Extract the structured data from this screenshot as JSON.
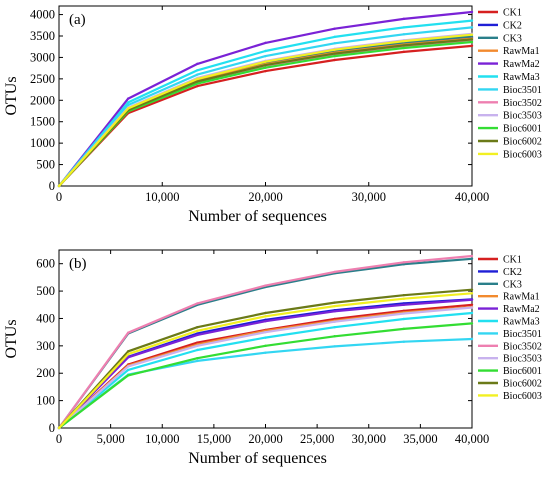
{
  "chart_data": [
    {
      "type": "line",
      "panel_label": "(a)",
      "xlabel": "Number of sequences",
      "ylabel": "OTUs",
      "xlim": [
        0,
        40000
      ],
      "ylim": [
        0,
        4200
      ],
      "xticks": [
        0,
        10000,
        20000,
        30000,
        40000
      ],
      "xtick_labels": [
        "0",
        "10,000",
        "20,000",
        "30,000",
        "40,000"
      ],
      "yticks": [
        0,
        500,
        1000,
        1500,
        2000,
        2500,
        3000,
        3500,
        4000
      ],
      "ytick_labels": [
        "0",
        "500",
        "1000",
        "1500",
        "2000",
        "2500",
        "3000",
        "3500",
        "4000"
      ],
      "x": [
        0,
        6700,
        13400,
        20000,
        26700,
        33400,
        40000
      ],
      "legend_position": "right",
      "series": [
        {
          "name": "CK1",
          "color": "#d62020",
          "values": [
            0,
            1700,
            2330,
            2680,
            2940,
            3130,
            3270
          ]
        },
        {
          "name": "CK2",
          "color": "#1f1fd6",
          "values": [
            0,
            1800,
            2480,
            2860,
            3130,
            3320,
            3460
          ]
        },
        {
          "name": "CK3",
          "color": "#2a7f8a",
          "values": [
            0,
            1820,
            2500,
            2880,
            3150,
            3340,
            3490
          ]
        },
        {
          "name": "RawMa1",
          "color": "#f28a2e",
          "values": [
            0,
            1790,
            2460,
            2840,
            3110,
            3300,
            3440
          ]
        },
        {
          "name": "RawMa2",
          "color": "#7a22d6",
          "values": [
            0,
            2040,
            2850,
            3340,
            3670,
            3900,
            4060
          ]
        },
        {
          "name": "RawMa3",
          "color": "#22e0f0",
          "values": [
            0,
            1950,
            2700,
            3150,
            3480,
            3700,
            3860
          ]
        },
        {
          "name": "Bioc3501",
          "color": "#33d6f2",
          "values": [
            0,
            1890,
            2600,
            3030,
            3330,
            3540,
            3700
          ]
        },
        {
          "name": "Bioc3502",
          "color": "#ee7fb0",
          "values": [
            0,
            1760,
            2420,
            2800,
            3070,
            3260,
            3400
          ]
        },
        {
          "name": "Bioc3503",
          "color": "#c8b2ee",
          "values": [
            0,
            1830,
            2520,
            2920,
            3200,
            3400,
            3550
          ]
        },
        {
          "name": "Bioc6001",
          "color": "#33dd33",
          "values": [
            0,
            1740,
            2390,
            2760,
            3030,
            3220,
            3360
          ]
        },
        {
          "name": "Bioc6002",
          "color": "#6b7a18",
          "values": [
            0,
            1770,
            2440,
            2820,
            3090,
            3280,
            3420
          ]
        },
        {
          "name": "Bioc6003",
          "color": "#f2f022",
          "values": [
            0,
            1810,
            2500,
            2900,
            3180,
            3380,
            3530
          ]
        }
      ]
    },
    {
      "type": "line",
      "panel_label": "(b)",
      "xlabel": "Number of sequences",
      "ylabel": "OTUs",
      "xlim": [
        0,
        40000
      ],
      "ylim": [
        0,
        650
      ],
      "xticks": [
        0,
        5000,
        10000,
        15000,
        20000,
        25000,
        30000,
        35000,
        40000
      ],
      "xtick_labels": [
        "0",
        "5,000",
        "10,000",
        "15,000",
        "20,000",
        "25,000",
        "30,000",
        "35,000",
        "40,000"
      ],
      "yticks": [
        0,
        100,
        200,
        300,
        400,
        500,
        600
      ],
      "ytick_labels": [
        "0",
        "100",
        "200",
        "300",
        "400",
        "500",
        "600"
      ],
      "x": [
        0,
        6700,
        13400,
        20000,
        26700,
        33400,
        40000
      ],
      "legend_position": "right",
      "series": [
        {
          "name": "CK1",
          "color": "#d62020",
          "values": [
            0,
            232,
            312,
            358,
            398,
            428,
            450
          ]
        },
        {
          "name": "CK2",
          "color": "#1f1fd6",
          "values": [
            0,
            260,
            345,
            395,
            430,
            455,
            470
          ]
        },
        {
          "name": "CK3",
          "color": "#2a7f8a",
          "values": [
            0,
            345,
            450,
            515,
            565,
            598,
            618
          ]
        },
        {
          "name": "RawMa1",
          "color": "#f28a2e",
          "values": [
            0,
            228,
            305,
            355,
            392,
            422,
            442
          ]
        },
        {
          "name": "RawMa2",
          "color": "#7a22d6",
          "values": [
            0,
            258,
            340,
            390,
            426,
            450,
            468
          ]
        },
        {
          "name": "RawMa3",
          "color": "#22e0f0",
          "values": [
            0,
            212,
            285,
            330,
            368,
            398,
            420
          ]
        },
        {
          "name": "Bioc3501",
          "color": "#33d6f2",
          "values": [
            0,
            195,
            245,
            275,
            298,
            315,
            325
          ]
        },
        {
          "name": "Bioc3502",
          "color": "#ee7fb0",
          "values": [
            0,
            348,
            455,
            520,
            570,
            605,
            628
          ]
        },
        {
          "name": "Bioc3503",
          "color": "#c8b2ee",
          "values": [
            0,
            225,
            300,
            350,
            388,
            418,
            440
          ]
        },
        {
          "name": "Bioc6001",
          "color": "#33dd33",
          "values": [
            0,
            192,
            255,
            300,
            335,
            362,
            382
          ]
        },
        {
          "name": "Bioc6002",
          "color": "#6b7a18",
          "values": [
            0,
            280,
            368,
            420,
            458,
            485,
            505
          ]
        },
        {
          "name": "Bioc6003",
          "color": "#f2f022",
          "values": [
            0,
            270,
            355,
            408,
            445,
            472,
            492
          ]
        }
      ]
    }
  ]
}
